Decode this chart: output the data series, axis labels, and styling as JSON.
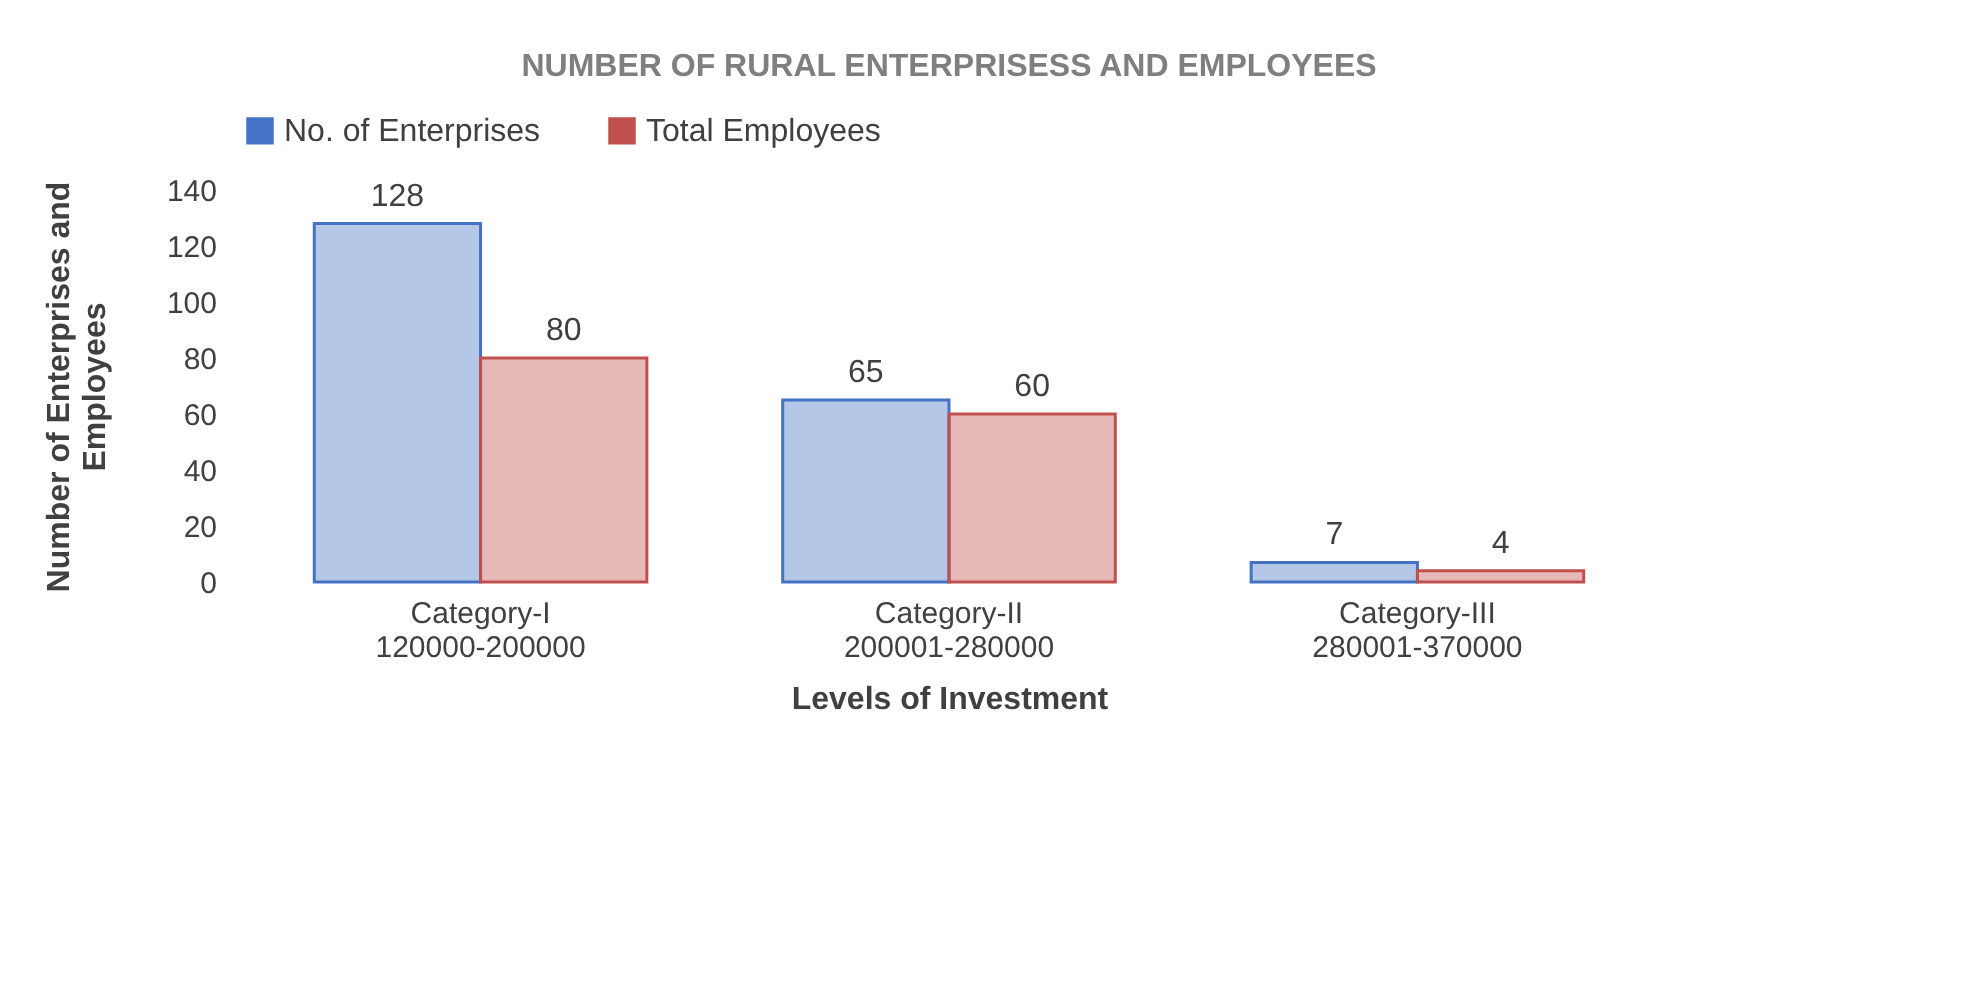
{
  "chart_data": {
    "type": "bar",
    "title": "NUMBER OF RURAL ENTERPRISESS AND EMPLOYEES",
    "xlabel": "Levels of Investment",
    "ylabel": "Number of Enterprises and\nEmployees",
    "categories": [
      "Category-I\n120000-200000",
      "Category-II\n200001-280000",
      "Category-III\n280001-370000"
    ],
    "series": [
      {
        "name": "No. of Enterprises",
        "color": "#4472c4",
        "values": [
          128,
          65,
          7
        ]
      },
      {
        "name": "Total Employees",
        "color": "#c0504d",
        "values": [
          80,
          60,
          4
        ]
      }
    ],
    "ylim": [
      0,
      140
    ],
    "yticks": [
      0,
      20,
      40,
      60,
      80,
      100,
      120,
      140
    ],
    "data_labels": true,
    "legend": "top",
    "grid": false
  }
}
